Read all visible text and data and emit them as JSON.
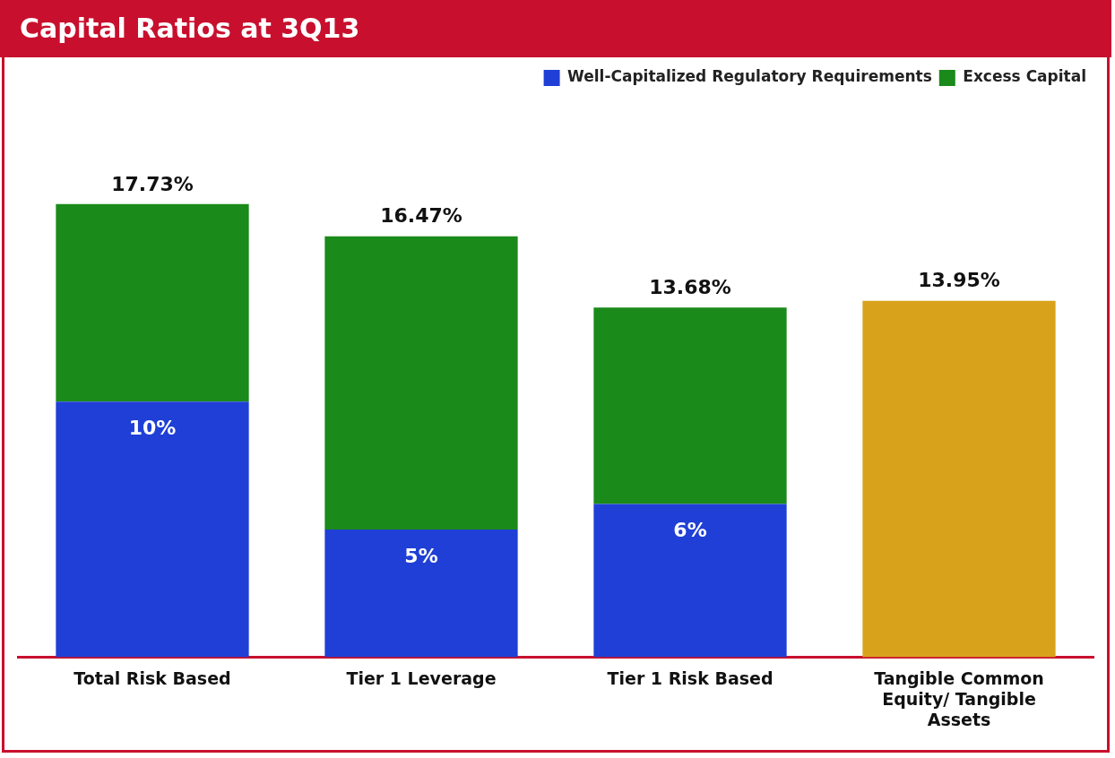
{
  "chart_data": {
    "type": "bar",
    "title": "Capital Ratios at 3Q13",
    "stacked": true,
    "legend": "top right",
    "grid": false,
    "tick_labels": "x",
    "categories": [
      "Total Risk Based",
      "Tier 1 Leverage",
      "Tier 1 Risk Based",
      "Tangible Common Equity/ Tangible Assets"
    ],
    "series": [
      {
        "name": "Well-Capitalized Regulatory Requirements",
        "color": "#1f3fd6",
        "values": [
          10,
          5,
          6,
          null
        ],
        "value_labels": [
          "10%",
          "5%",
          "6%",
          null
        ]
      },
      {
        "name": "Excess Capital",
        "color": "#1a8a1a",
        "values": [
          7.73,
          11.47,
          7.68,
          null
        ]
      },
      {
        "color": "#d9a21b",
        "values": [
          null,
          null,
          null,
          13.95
        ]
      }
    ],
    "totals": [
      "17.73%",
      "16.47%",
      "13.68%",
      "13.95%"
    ]
  }
}
